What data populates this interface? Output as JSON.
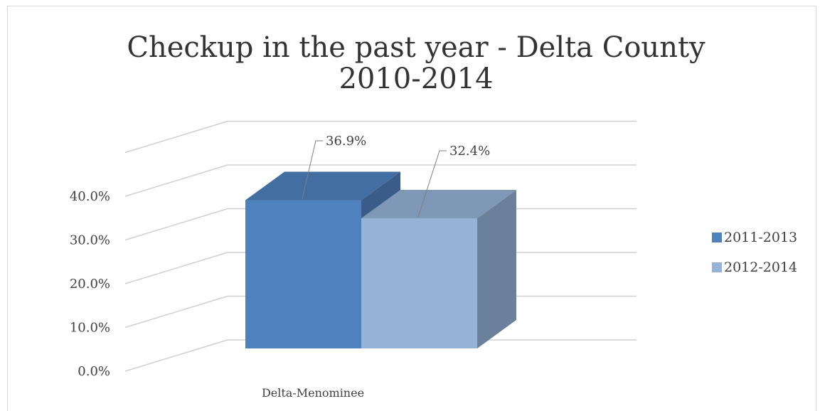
{
  "chart_data": {
    "type": "bar",
    "title": [
      "Checkup in the past year - Delta County",
      "2010-2014"
    ],
    "categories": [
      "Delta-Menominee"
    ],
    "series": [
      {
        "name": "2011-2013",
        "values": [
          36.9
        ],
        "color": "#4f81bd",
        "data_label": "36.9%"
      },
      {
        "name": "2012-2014",
        "values": [
          32.4
        ],
        "color": "#95b3d7",
        "data_label": "32.4%"
      }
    ],
    "y_ticks": [
      "0.0%",
      "10.0%",
      "20.0%",
      "30.0%",
      "40.0%"
    ],
    "ylim": [
      0,
      40
    ],
    "legend_position": "right",
    "style": "3d-clustered-column",
    "grid": true
  }
}
